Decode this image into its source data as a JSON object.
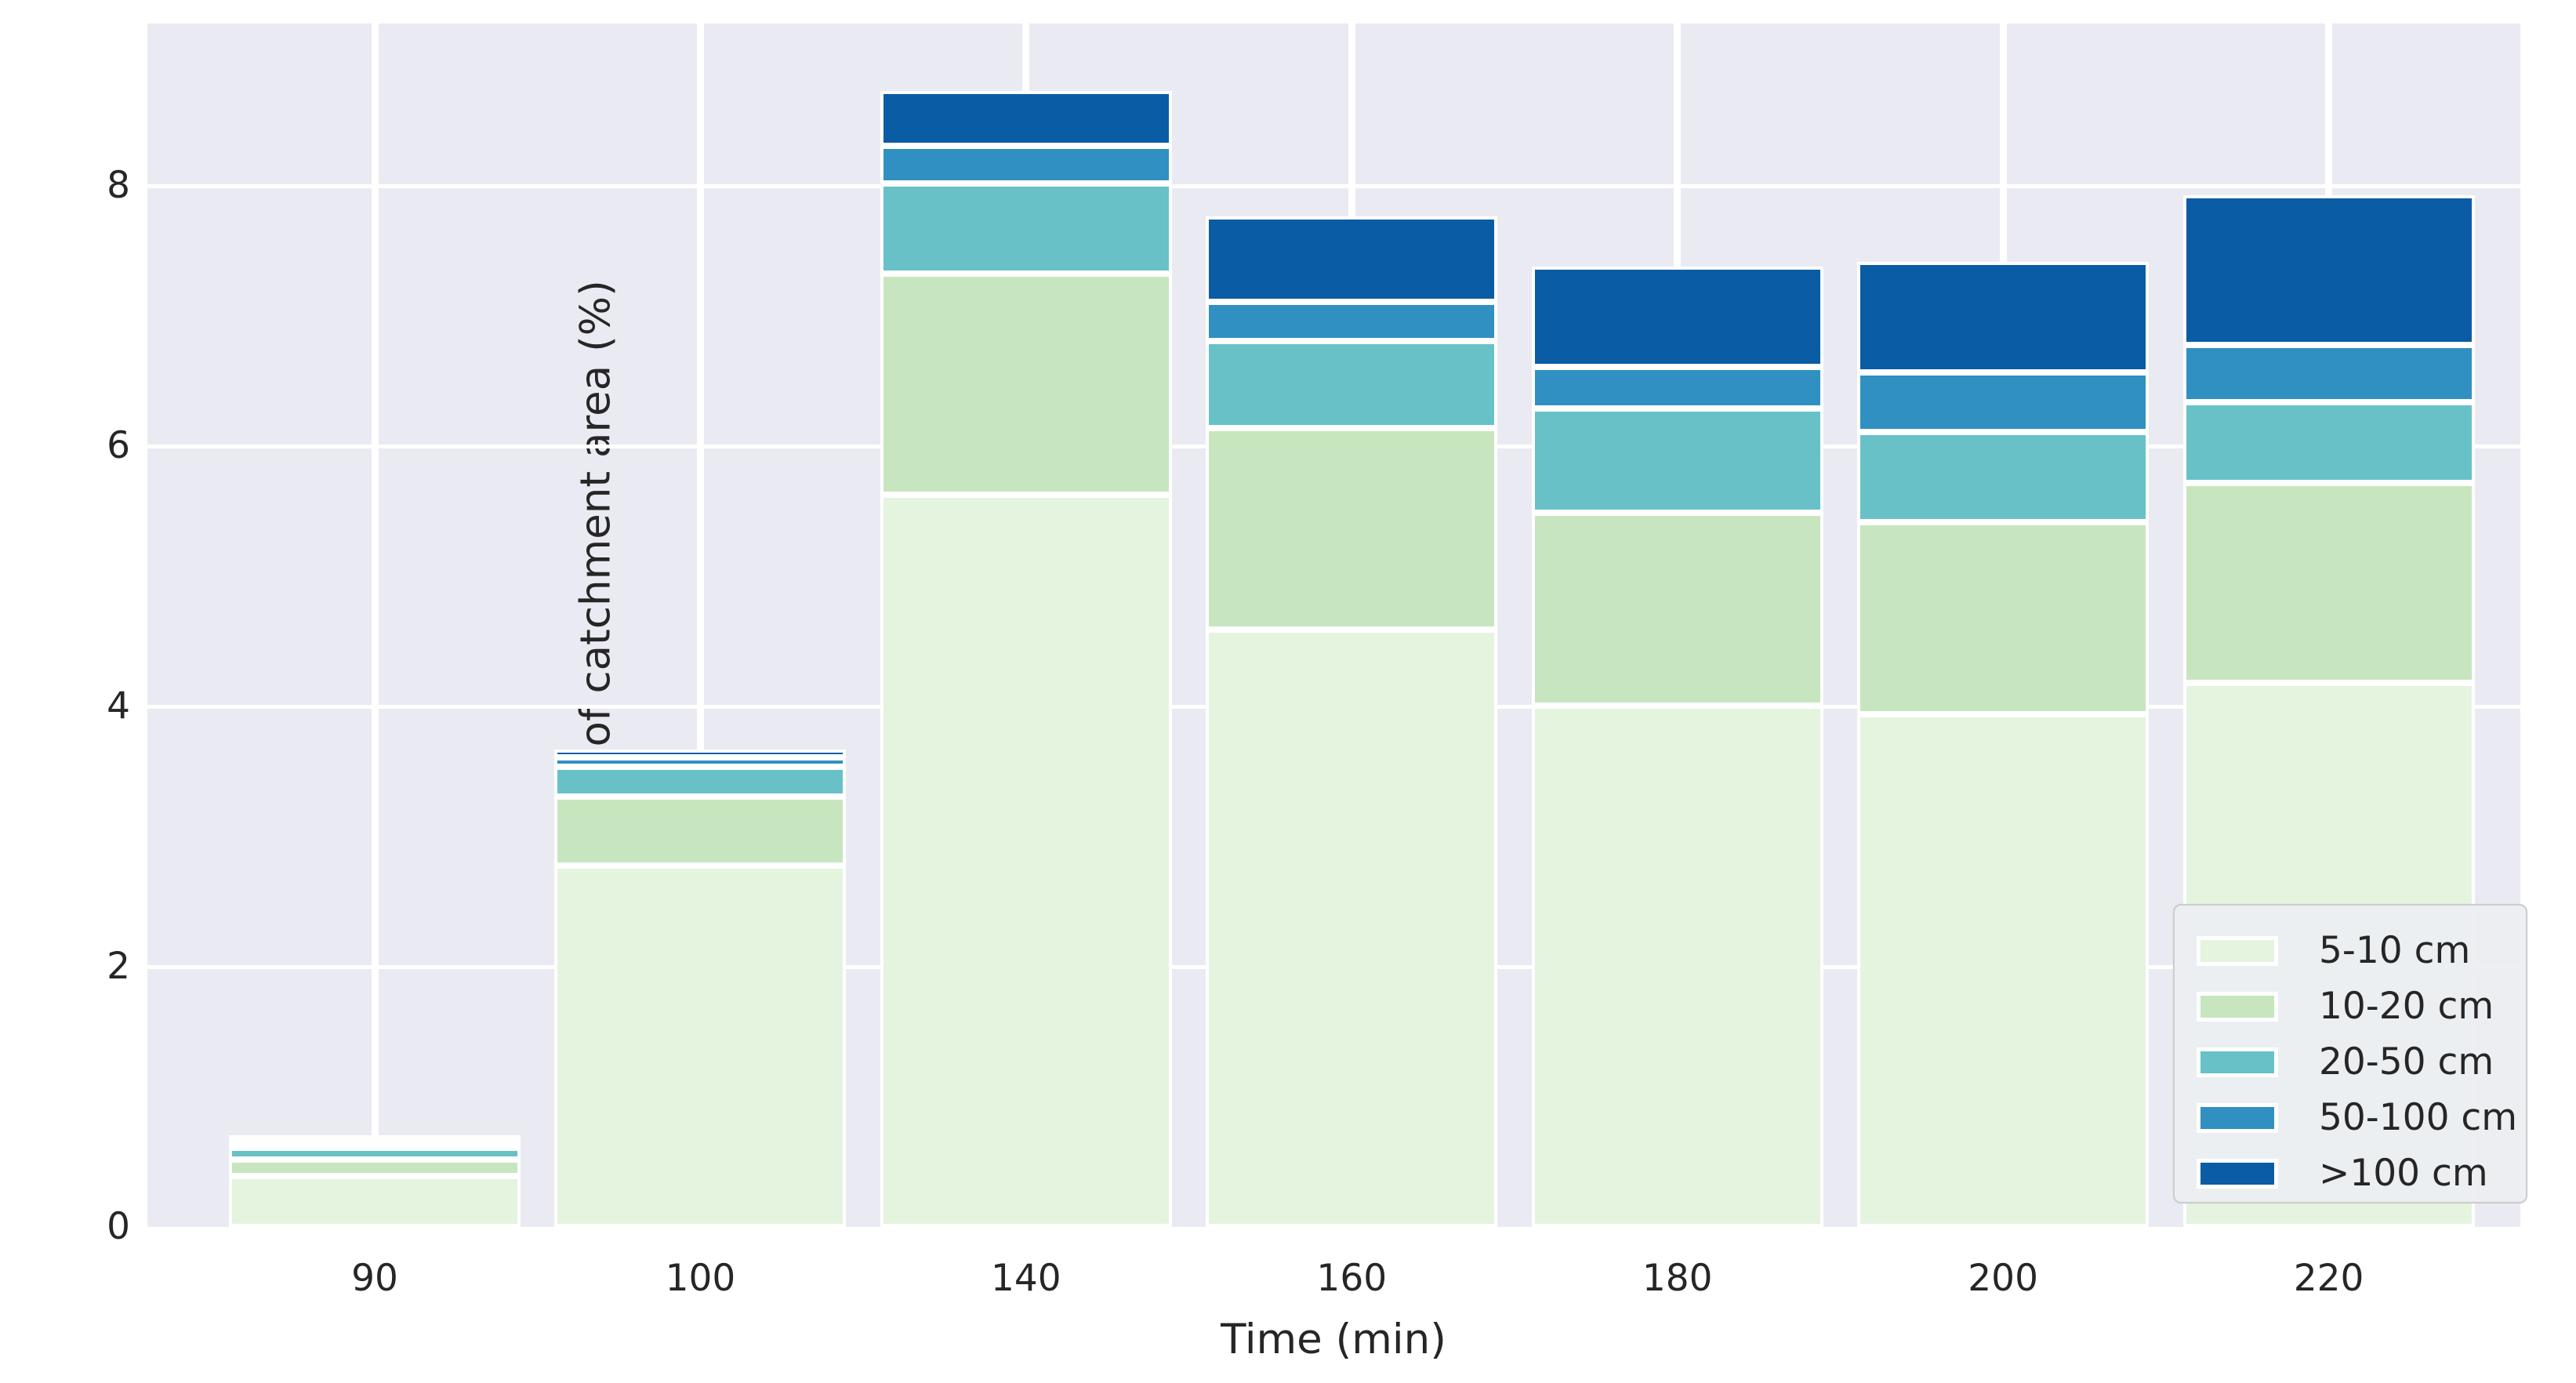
{
  "figure": {
    "xlabel": "Time (min)",
    "ylabel": "Proportion of catchment area (%)"
  },
  "chart_data": {
    "type": "bar",
    "stacked": true,
    "title": "",
    "xlabel": "Time (min)",
    "ylabel": "Proportion of catchment area (%)",
    "categories": [
      "90",
      "100",
      "140",
      "160",
      "180",
      "200",
      "220"
    ],
    "series": [
      {
        "name": "5-10 cm",
        "color": "#e4f4df",
        "values": [
          0.39,
          2.78,
          5.63,
          4.59,
          4.01,
          3.94,
          4.18
        ]
      },
      {
        "name": "10-20 cm",
        "color": "#c7e6bf",
        "values": [
          0.13,
          0.53,
          1.7,
          1.55,
          1.48,
          1.48,
          1.54
        ]
      },
      {
        "name": "20-50 cm",
        "color": "#67c1c7",
        "values": [
          0.09,
          0.23,
          0.69,
          0.67,
          0.8,
          0.69,
          0.62
        ]
      },
      {
        "name": "50-100 cm",
        "color": "#3090c1",
        "values": [
          0.03,
          0.07,
          0.29,
          0.3,
          0.32,
          0.46,
          0.44
        ]
      },
      {
        "name": ">100 cm",
        "color": "#0a5ca4",
        "values": [
          0.02,
          0.06,
          0.42,
          0.66,
          0.77,
          0.85,
          1.15
        ]
      }
    ],
    "bar_totals": [
      0.66,
      3.67,
      8.73,
      7.77,
      7.38,
      7.42,
      7.93
    ],
    "ylim": [
      0,
      9.25
    ],
    "yticks": [
      0,
      2,
      4,
      6,
      8
    ],
    "ytick_labels": [
      "0",
      "2",
      "4",
      "6",
      "8"
    ],
    "grid": true,
    "grid_color": "#ffffff",
    "plot_background": "#eaeaf2",
    "legend_position": "lower right",
    "legend_items": [
      "5-10 cm",
      "10-20 cm",
      "20-50 cm",
      "50-100 cm",
      ">100 cm"
    ]
  }
}
